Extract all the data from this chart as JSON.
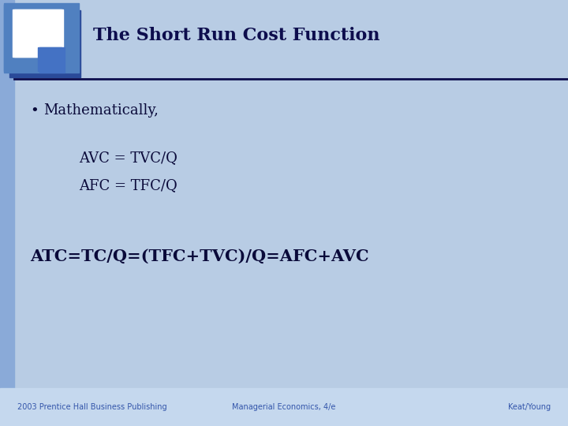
{
  "title": "The Short Run Cost Function",
  "slide_bg": "#b8cce4",
  "title_color": "#0d0d4d",
  "title_fontsize": 16,
  "text_color": "#0a0a3a",
  "bullet_text": "Mathematically,",
  "line1": "AVC = TVC/Q",
  "line2": "AFC = TFC/Q",
  "line3": "ATC=TC/Q=(TFC+TVC)/Q=AFC+AVC",
  "footer_left": "2003 Prentice Hall Business Publishing",
  "footer_center": "Managerial Economics, 4/e",
  "footer_right": "Keat/Young",
  "footer_bg": "#c5d8ee",
  "footer_text_color": "#3355aa",
  "logo_mid": "#5080c0",
  "logo_dark": "#2a4a99",
  "logo_bright": "#4472c4",
  "logo_white": "#ffffff",
  "sidebar_color": "#8aaad8",
  "sep_color": "#0d0d4d",
  "sep_linewidth": 2.0,
  "bullet_fontsize": 13,
  "body_fontsize": 13,
  "atc_fontsize": 15,
  "footer_fontsize": 7
}
